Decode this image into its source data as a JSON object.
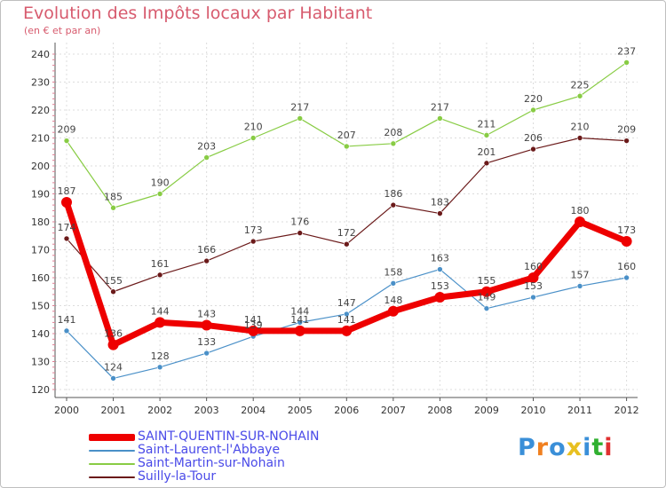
{
  "chart_data": {
    "type": "line",
    "title": "Evolution des Impôts locaux par Habitant",
    "subtitle": "(en € et par an)",
    "xlabel": "",
    "ylabel": "",
    "categories": [
      "2000",
      "2001",
      "2002",
      "2003",
      "2004",
      "2005",
      "2006",
      "2007",
      "2008",
      "2009",
      "2010",
      "2011",
      "2012"
    ],
    "ylim": [
      120,
      240
    ],
    "yticks": [
      120,
      130,
      140,
      150,
      160,
      170,
      180,
      190,
      200,
      210,
      220,
      230,
      240
    ],
    "grid": true,
    "series": [
      {
        "name": "SAINT-QUENTIN-SUR-NOHAIN",
        "color": "#ee0000",
        "values": [
          187,
          136,
          144,
          143,
          141,
          141,
          141,
          148,
          153,
          155,
          160,
          180,
          173
        ]
      },
      {
        "name": "Saint-Laurent-l'Abbaye",
        "color": "#4a90c8",
        "values": [
          141,
          124,
          128,
          133,
          139,
          144,
          147,
          158,
          163,
          149,
          153,
          157,
          160
        ]
      },
      {
        "name": "Saint-Martin-sur-Nohain",
        "color": "#88cc44",
        "values": [
          209,
          185,
          190,
          203,
          210,
          217,
          207,
          208,
          217,
          211,
          220,
          225,
          237
        ]
      },
      {
        "name": "Suilly-la-Tour",
        "color": "#6b1a1a",
        "values": [
          174,
          155,
          161,
          166,
          173,
          176,
          172,
          186,
          183,
          201,
          206,
          210,
          209
        ]
      }
    ]
  },
  "logo": {
    "text": "Proxiti"
  }
}
